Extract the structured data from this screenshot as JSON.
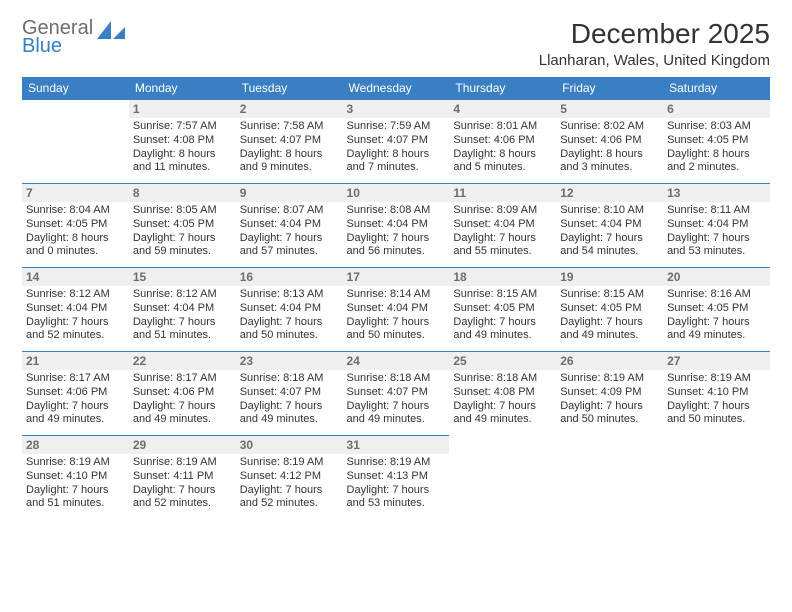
{
  "brand": {
    "line1": "General",
    "line2": "Blue"
  },
  "colors": {
    "header_bg": "#3a7fc3",
    "header_text": "#ffffff",
    "daynum_bg": "#efefef",
    "daynum_text": "#6d6d6d",
    "border": "#3a7fc3",
    "body_text": "#333333"
  },
  "title": "December 2025",
  "location": "Llanharan, Wales, United Kingdom",
  "day_headers": [
    "Sunday",
    "Monday",
    "Tuesday",
    "Wednesday",
    "Thursday",
    "Friday",
    "Saturday"
  ],
  "weeks": [
    [
      null,
      {
        "n": "1",
        "sunrise": "7:57 AM",
        "sunset": "4:08 PM",
        "daylight": "8 hours and 11 minutes."
      },
      {
        "n": "2",
        "sunrise": "7:58 AM",
        "sunset": "4:07 PM",
        "daylight": "8 hours and 9 minutes."
      },
      {
        "n": "3",
        "sunrise": "7:59 AM",
        "sunset": "4:07 PM",
        "daylight": "8 hours and 7 minutes."
      },
      {
        "n": "4",
        "sunrise": "8:01 AM",
        "sunset": "4:06 PM",
        "daylight": "8 hours and 5 minutes."
      },
      {
        "n": "5",
        "sunrise": "8:02 AM",
        "sunset": "4:06 PM",
        "daylight": "8 hours and 3 minutes."
      },
      {
        "n": "6",
        "sunrise": "8:03 AM",
        "sunset": "4:05 PM",
        "daylight": "8 hours and 2 minutes."
      }
    ],
    [
      {
        "n": "7",
        "sunrise": "8:04 AM",
        "sunset": "4:05 PM",
        "daylight": "8 hours and 0 minutes."
      },
      {
        "n": "8",
        "sunrise": "8:05 AM",
        "sunset": "4:05 PM",
        "daylight": "7 hours and 59 minutes."
      },
      {
        "n": "9",
        "sunrise": "8:07 AM",
        "sunset": "4:04 PM",
        "daylight": "7 hours and 57 minutes."
      },
      {
        "n": "10",
        "sunrise": "8:08 AM",
        "sunset": "4:04 PM",
        "daylight": "7 hours and 56 minutes."
      },
      {
        "n": "11",
        "sunrise": "8:09 AM",
        "sunset": "4:04 PM",
        "daylight": "7 hours and 55 minutes."
      },
      {
        "n": "12",
        "sunrise": "8:10 AM",
        "sunset": "4:04 PM",
        "daylight": "7 hours and 54 minutes."
      },
      {
        "n": "13",
        "sunrise": "8:11 AM",
        "sunset": "4:04 PM",
        "daylight": "7 hours and 53 minutes."
      }
    ],
    [
      {
        "n": "14",
        "sunrise": "8:12 AM",
        "sunset": "4:04 PM",
        "daylight": "7 hours and 52 minutes."
      },
      {
        "n": "15",
        "sunrise": "8:12 AM",
        "sunset": "4:04 PM",
        "daylight": "7 hours and 51 minutes."
      },
      {
        "n": "16",
        "sunrise": "8:13 AM",
        "sunset": "4:04 PM",
        "daylight": "7 hours and 50 minutes."
      },
      {
        "n": "17",
        "sunrise": "8:14 AM",
        "sunset": "4:04 PM",
        "daylight": "7 hours and 50 minutes."
      },
      {
        "n": "18",
        "sunrise": "8:15 AM",
        "sunset": "4:05 PM",
        "daylight": "7 hours and 49 minutes."
      },
      {
        "n": "19",
        "sunrise": "8:15 AM",
        "sunset": "4:05 PM",
        "daylight": "7 hours and 49 minutes."
      },
      {
        "n": "20",
        "sunrise": "8:16 AM",
        "sunset": "4:05 PM",
        "daylight": "7 hours and 49 minutes."
      }
    ],
    [
      {
        "n": "21",
        "sunrise": "8:17 AM",
        "sunset": "4:06 PM",
        "daylight": "7 hours and 49 minutes."
      },
      {
        "n": "22",
        "sunrise": "8:17 AM",
        "sunset": "4:06 PM",
        "daylight": "7 hours and 49 minutes."
      },
      {
        "n": "23",
        "sunrise": "8:18 AM",
        "sunset": "4:07 PM",
        "daylight": "7 hours and 49 minutes."
      },
      {
        "n": "24",
        "sunrise": "8:18 AM",
        "sunset": "4:07 PM",
        "daylight": "7 hours and 49 minutes."
      },
      {
        "n": "25",
        "sunrise": "8:18 AM",
        "sunset": "4:08 PM",
        "daylight": "7 hours and 49 minutes."
      },
      {
        "n": "26",
        "sunrise": "8:19 AM",
        "sunset": "4:09 PM",
        "daylight": "7 hours and 50 minutes."
      },
      {
        "n": "27",
        "sunrise": "8:19 AM",
        "sunset": "4:10 PM",
        "daylight": "7 hours and 50 minutes."
      }
    ],
    [
      {
        "n": "28",
        "sunrise": "8:19 AM",
        "sunset": "4:10 PM",
        "daylight": "7 hours and 51 minutes."
      },
      {
        "n": "29",
        "sunrise": "8:19 AM",
        "sunset": "4:11 PM",
        "daylight": "7 hours and 52 minutes."
      },
      {
        "n": "30",
        "sunrise": "8:19 AM",
        "sunset": "4:12 PM",
        "daylight": "7 hours and 52 minutes."
      },
      {
        "n": "31",
        "sunrise": "8:19 AM",
        "sunset": "4:13 PM",
        "daylight": "7 hours and 53 minutes."
      },
      null,
      null,
      null
    ]
  ],
  "labels": {
    "sunrise": "Sunrise:",
    "sunset": "Sunset:",
    "daylight": "Daylight:"
  }
}
